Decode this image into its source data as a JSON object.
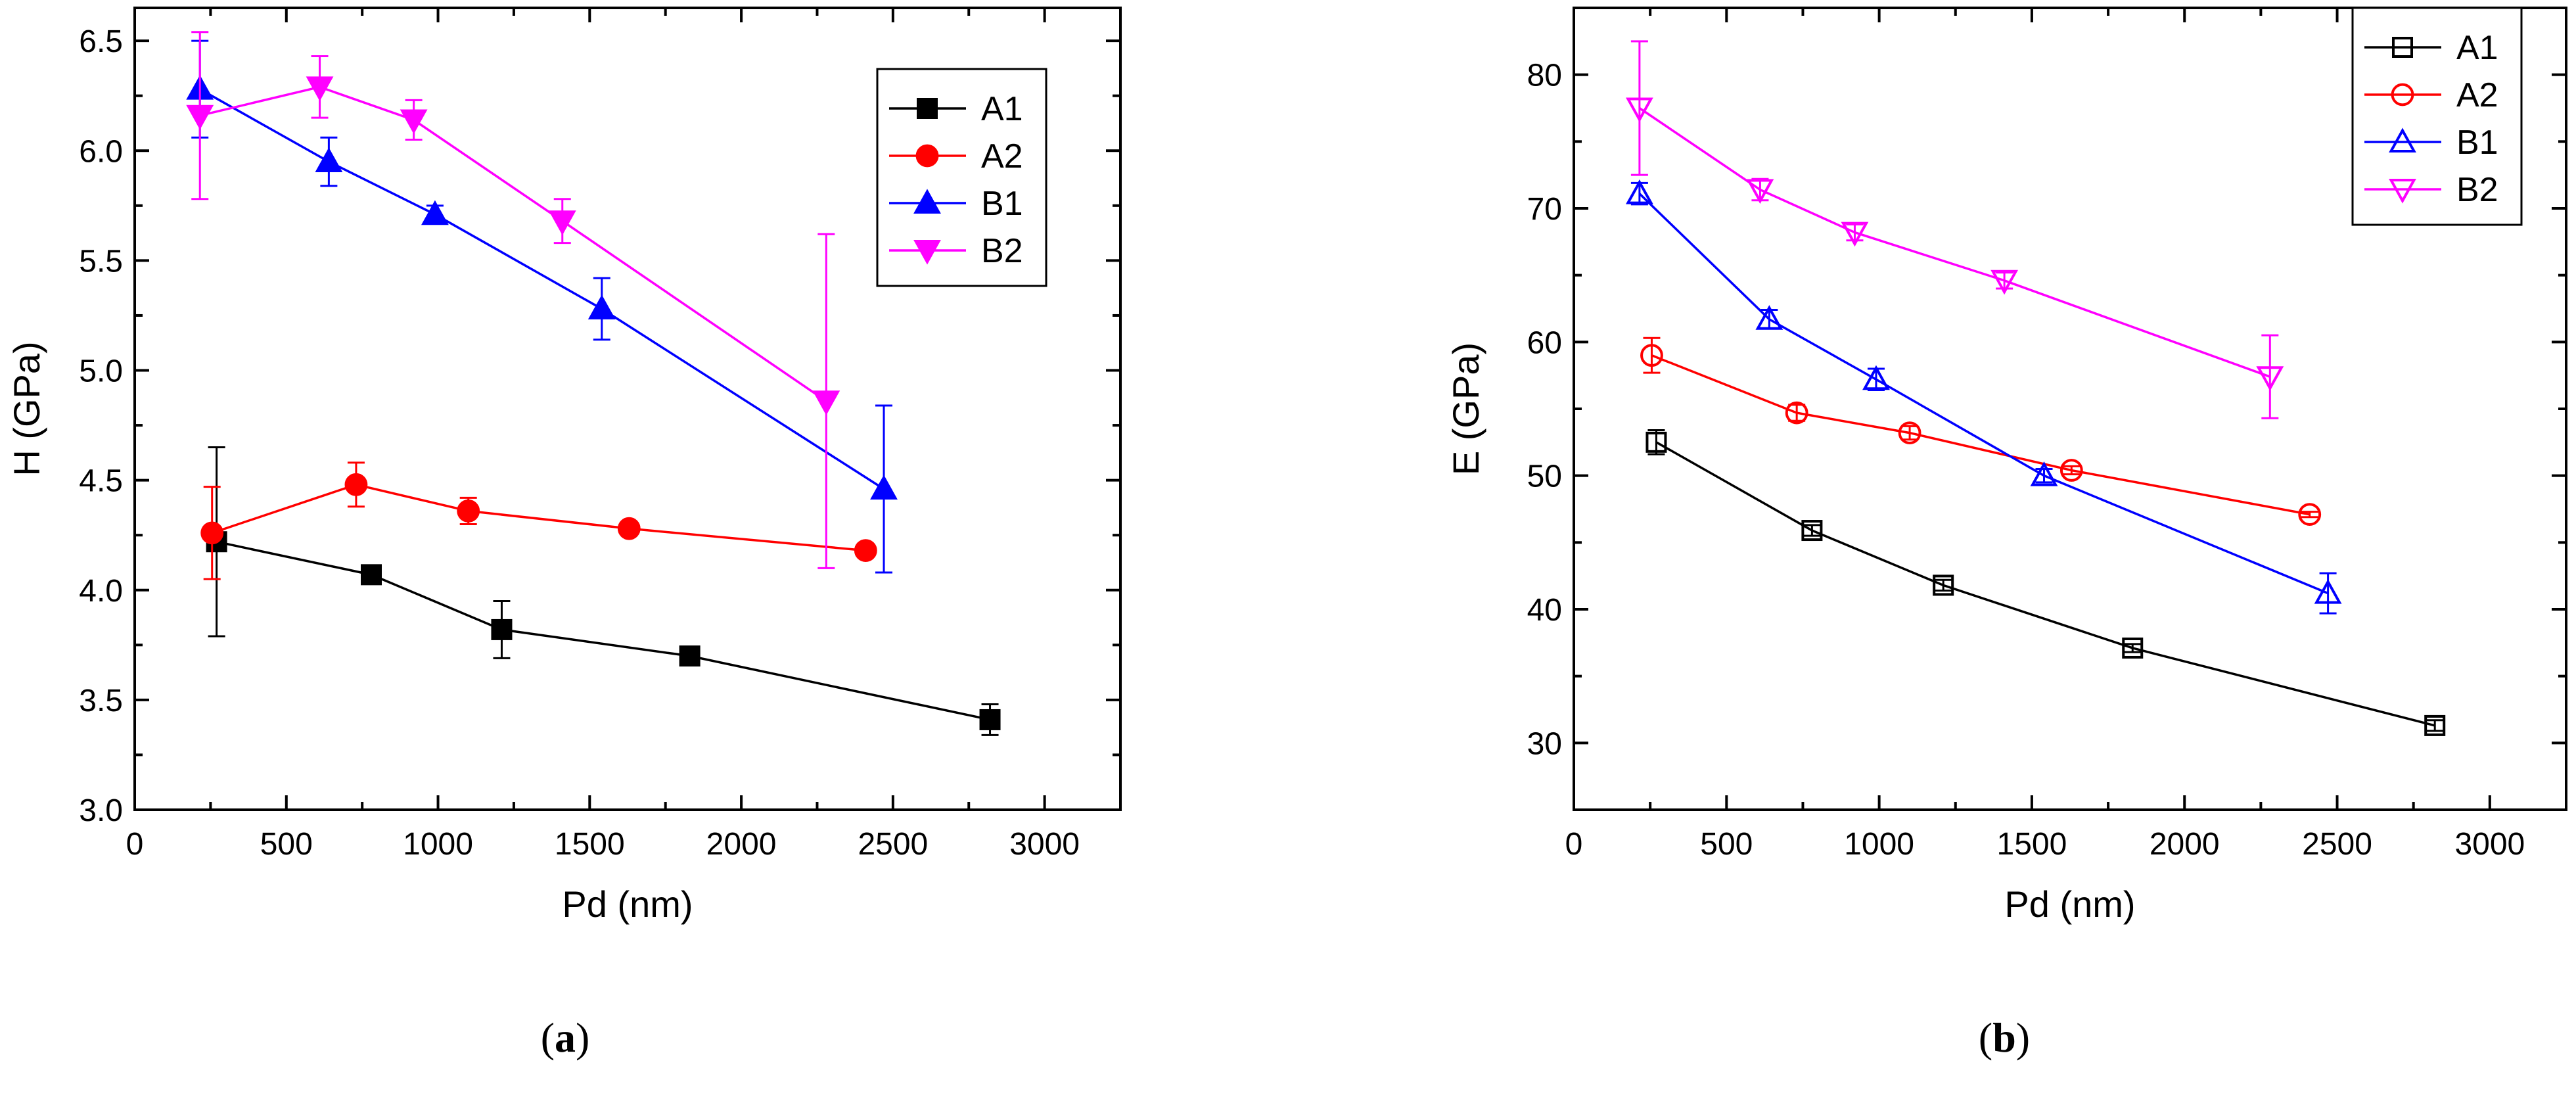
{
  "chart_data": [
    {
      "type": "line",
      "panel_label_open": "(",
      "panel_label_letter": "a",
      "panel_label_close": ")",
      "xlabel": "Pd (nm)",
      "ylabel": "H (GPa)",
      "xlim": [
        0,
        3250
      ],
      "ylim": [
        3.0,
        6.65
      ],
      "xticks": [
        0,
        500,
        1000,
        1500,
        2000,
        2500,
        3000
      ],
      "xtick_labels": [
        "0",
        "500",
        "1000",
        "1500",
        "2000",
        "2500",
        "3000"
      ],
      "yticks": [
        3.0,
        3.5,
        4.0,
        4.5,
        5.0,
        5.5,
        6.0,
        6.5
      ],
      "ytick_labels": [
        "3.0",
        "3.5",
        "4.0",
        "4.5",
        "5.0",
        "5.5",
        "6.0",
        "6.5"
      ],
      "legend_position": "top-right",
      "series": [
        {
          "name": "A1",
          "color": "#000000",
          "marker": "square",
          "filled": true,
          "x": [
            270,
            780,
            1210,
            1830,
            2820
          ],
          "y": [
            4.22,
            4.07,
            3.82,
            3.7,
            3.41
          ],
          "err": [
            0.43,
            0.04,
            0.13,
            0.02,
            0.07
          ]
        },
        {
          "name": "A2",
          "color": "#ff0000",
          "marker": "circle",
          "filled": true,
          "x": [
            255,
            730,
            1100,
            1630,
            2410
          ],
          "y": [
            4.26,
            4.48,
            4.36,
            4.28,
            4.18
          ],
          "err": [
            0.21,
            0.1,
            0.06,
            0.02,
            0.02
          ]
        },
        {
          "name": "B1",
          "color": "#0000ff",
          "marker": "triangle-up",
          "filled": true,
          "x": [
            215,
            640,
            990,
            1540,
            2470
          ],
          "y": [
            6.28,
            5.95,
            5.71,
            5.28,
            4.46
          ],
          "err": [
            0.22,
            0.11,
            0.04,
            0.14,
            0.38
          ]
        },
        {
          "name": "B2",
          "color": "#ff00ff",
          "marker": "triangle-down",
          "filled": true,
          "x": [
            215,
            610,
            920,
            1410,
            2280
          ],
          "y": [
            6.16,
            6.29,
            6.14,
            5.68,
            4.86
          ],
          "err": [
            0.38,
            0.14,
            0.09,
            0.1,
            0.76
          ]
        }
      ]
    },
    {
      "type": "line",
      "panel_label_open": "(",
      "panel_label_letter": "b",
      "panel_label_close": ")",
      "xlabel": "Pd (nm)",
      "ylabel": "E (GPa)",
      "xlim": [
        0,
        3250
      ],
      "ylim": [
        25,
        85
      ],
      "xticks": [
        0,
        500,
        1000,
        1500,
        2000,
        2500,
        3000
      ],
      "xtick_labels": [
        "0",
        "500",
        "1000",
        "1500",
        "2000",
        "2500",
        "3000"
      ],
      "yticks": [
        30,
        40,
        50,
        60,
        70,
        80
      ],
      "ytick_labels": [
        "30",
        "40",
        "50",
        "60",
        "70",
        "80"
      ],
      "legend_position": "top-right",
      "series": [
        {
          "name": "A1",
          "color": "#000000",
          "marker": "square",
          "filled": false,
          "x": [
            270,
            780,
            1210,
            1830,
            2820
          ],
          "y": [
            52.5,
            45.9,
            41.8,
            37.1,
            31.3
          ],
          "err": [
            0.9,
            0.4,
            0.4,
            0.3,
            0.4
          ]
        },
        {
          "name": "A2",
          "color": "#ff0000",
          "marker": "circle",
          "filled": false,
          "x": [
            255,
            730,
            1100,
            1630,
            2410
          ],
          "y": [
            59.0,
            54.7,
            53.2,
            50.4,
            47.1
          ],
          "err": [
            1.3,
            0.6,
            0.5,
            0.3,
            0.2
          ]
        },
        {
          "name": "B1",
          "color": "#0000ff",
          "marker": "triangle-up",
          "filled": false,
          "x": [
            215,
            640,
            990,
            1540,
            2470
          ],
          "y": [
            71.1,
            61.7,
            57.2,
            50.0,
            41.2
          ],
          "err": [
            0.8,
            0.7,
            0.8,
            0.5,
            1.5
          ]
        },
        {
          "name": "B2",
          "color": "#ff00ff",
          "marker": "triangle-down",
          "filled": false,
          "x": [
            215,
            610,
            920,
            1410,
            2280
          ],
          "y": [
            77.5,
            71.4,
            68.2,
            64.6,
            57.4
          ],
          "err": [
            5.0,
            0.8,
            0.6,
            0.6,
            3.1
          ]
        }
      ]
    }
  ]
}
